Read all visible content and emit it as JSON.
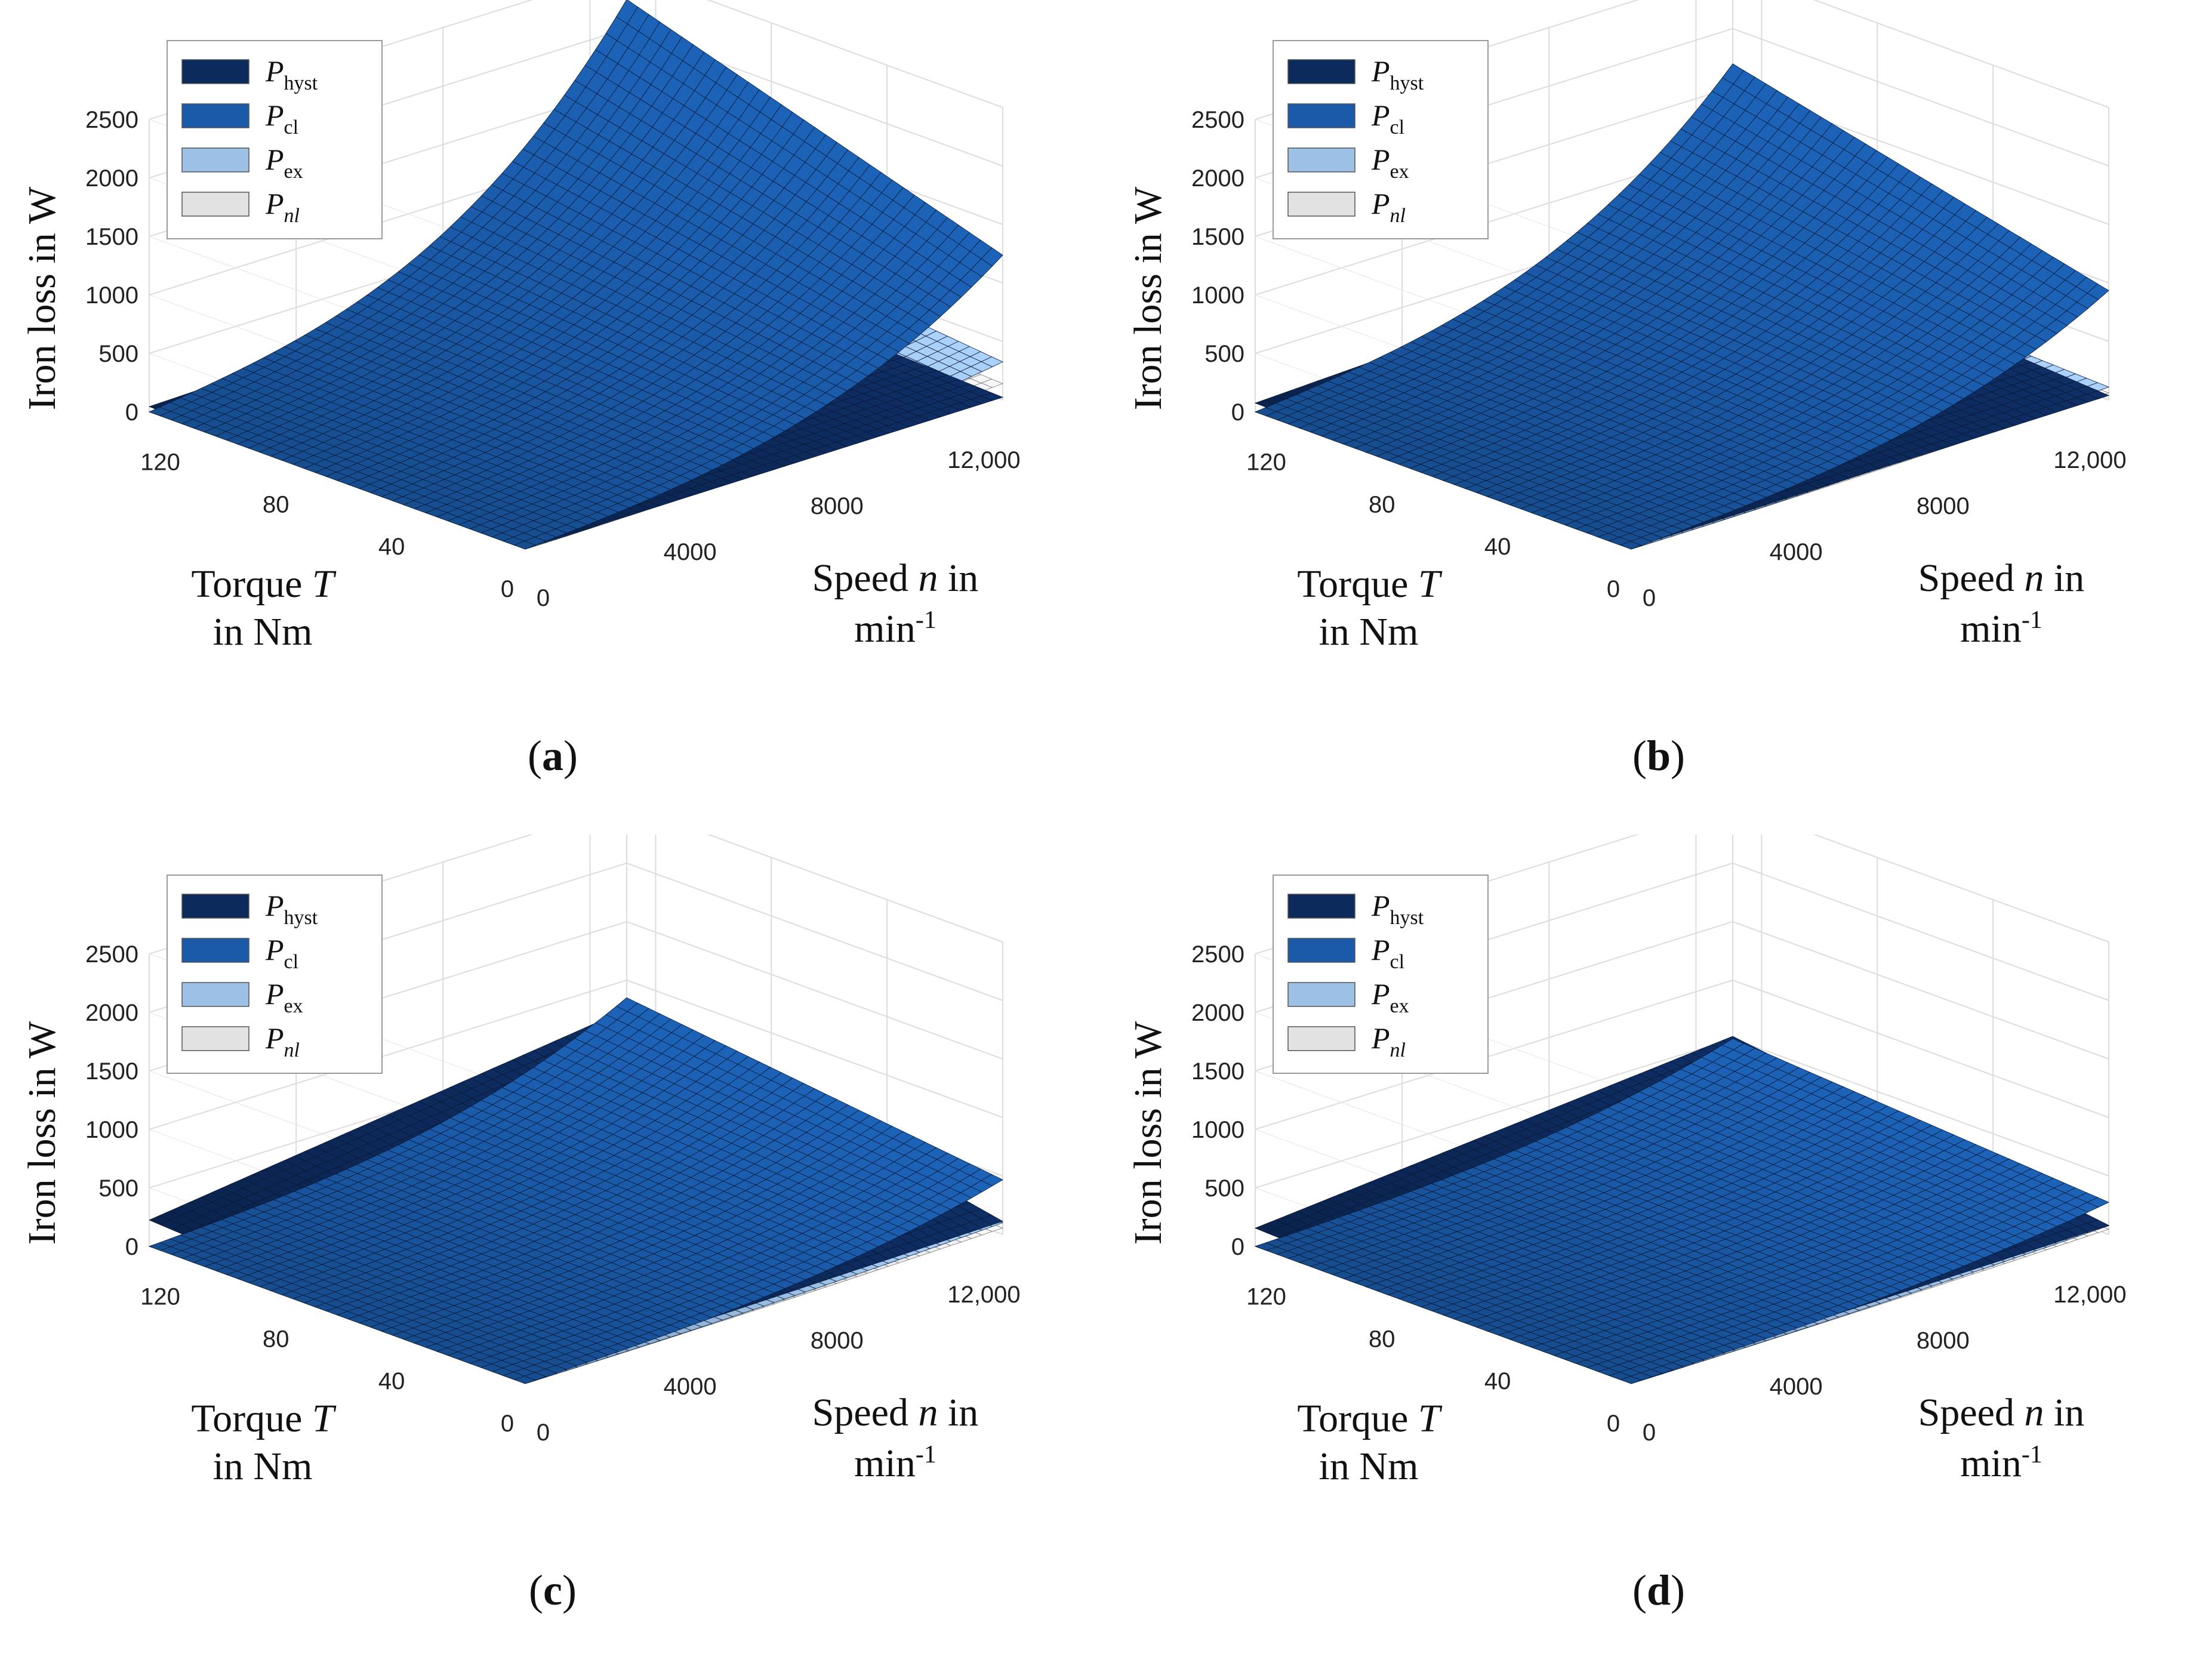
{
  "chart_data": [
    {
      "type": "surface",
      "panel_label": "(a)",
      "panel_letter": "a",
      "zlabel": "Iron loss in W",
      "xlabel_line1": "Torque T",
      "xlabel_line1_plain": "Torque ",
      "xlabel_line1_var": "T",
      "xlabel_line2": "in Nm",
      "ylabel_line1_plain": "Speed ",
      "ylabel_line1_var": "n",
      "ylabel_line1_tail": " in",
      "ylabel_line2_base": "min",
      "ylabel_line2_sup": "-1",
      "torque_ticks": [
        "120",
        "80",
        "40",
        "0"
      ],
      "speed_ticks": [
        "0",
        "4000",
        "8000",
        "12,000"
      ],
      "z_ticks": [
        "0",
        "500",
        "1000",
        "1500",
        "2000",
        "2500"
      ],
      "torque_range": [
        0,
        130
      ],
      "speed_range": [
        0,
        13000
      ],
      "zlim": [
        0,
        2500
      ],
      "legend": [
        {
          "main": "P",
          "sub": "hyst",
          "italic_sub": false,
          "color": "#0d2a5c"
        },
        {
          "main": "P",
          "sub": "cl",
          "italic_sub": false,
          "color": "#1a5aa8"
        },
        {
          "main": "P",
          "sub": "ex",
          "italic_sub": false,
          "color": "#9cc0e6"
        },
        {
          "main": "P",
          "sub": "nl",
          "italic_sub": true,
          "color": "#e2e2e2"
        }
      ],
      "series": [
        {
          "name": "P_hyst",
          "max_value": 150
        },
        {
          "name": "P_cl",
          "max_value": 2250
        },
        {
          "name": "P_ex",
          "max_value": 650
        },
        {
          "name": "P_nl",
          "max_value": 280
        }
      ]
    },
    {
      "type": "surface",
      "panel_label": "(b)",
      "panel_letter": "b",
      "zlabel": "Iron loss in W",
      "xlabel_line1_plain": "Torque ",
      "xlabel_line1_var": "T",
      "xlabel_line2": "in Nm",
      "ylabel_line1_plain": "Speed ",
      "ylabel_line1_var": "n",
      "ylabel_line1_tail": " in",
      "ylabel_line2_base": "min",
      "ylabel_line2_sup": "-1",
      "torque_ticks": [
        "120",
        "80",
        "40",
        "0"
      ],
      "speed_ticks": [
        "0",
        "4000",
        "8000",
        "12,000"
      ],
      "z_ticks": [
        "0",
        "500",
        "1000",
        "1500",
        "2000",
        "2500"
      ],
      "torque_range": [
        0,
        130
      ],
      "speed_range": [
        0,
        13000
      ],
      "zlim": [
        0,
        2500
      ],
      "legend": [
        {
          "main": "P",
          "sub": "hyst",
          "italic_sub": false,
          "color": "#0d2a5c"
        },
        {
          "main": "P",
          "sub": "cl",
          "italic_sub": false,
          "color": "#1a5aa8"
        },
        {
          "main": "P",
          "sub": "ex",
          "italic_sub": false,
          "color": "#9cc0e6"
        },
        {
          "main": "P",
          "sub": "nl",
          "italic_sub": true,
          "color": "#e2e2e2"
        }
      ],
      "series": [
        {
          "name": "P_hyst",
          "max_value": 250
        },
        {
          "name": "P_cl",
          "max_value": 1700
        },
        {
          "name": "P_ex",
          "max_value": 220
        },
        {
          "name": "P_nl",
          "max_value": 120
        }
      ]
    },
    {
      "type": "surface",
      "panel_label": "(c)",
      "panel_letter": "c",
      "zlabel": "Iron loss in W",
      "xlabel_line1_plain": "Torque ",
      "xlabel_line1_var": "T",
      "xlabel_line2": "in Nm",
      "ylabel_line1_plain": "Speed ",
      "ylabel_line1_var": "n",
      "ylabel_line1_tail": " in",
      "ylabel_line2_base": "min",
      "ylabel_line2_sup": "-1",
      "torque_ticks": [
        "120",
        "80",
        "40",
        "0"
      ],
      "speed_ticks": [
        "0",
        "4000",
        "8000",
        "12,000"
      ],
      "z_ticks": [
        "0",
        "500",
        "1000",
        "1500",
        "2000",
        "2500"
      ],
      "torque_range": [
        0,
        130
      ],
      "speed_range": [
        0,
        13000
      ],
      "zlim": [
        0,
        2500
      ],
      "legend": [
        {
          "main": "P",
          "sub": "hyst",
          "italic_sub": false,
          "color": "#0d2a5c"
        },
        {
          "main": "P",
          "sub": "cl",
          "italic_sub": false,
          "color": "#1a5aa8"
        },
        {
          "main": "P",
          "sub": "ex",
          "italic_sub": false,
          "color": "#9cc0e6"
        },
        {
          "main": "P",
          "sub": "nl",
          "italic_sub": true,
          "color": "#e2e2e2"
        }
      ],
      "series": [
        {
          "name": "P_hyst",
          "max_value": 750
        },
        {
          "name": "P_cl",
          "max_value": 850
        },
        {
          "name": "P_ex",
          "max_value": 200
        },
        {
          "name": "P_nl",
          "max_value": 110
        }
      ]
    },
    {
      "type": "surface",
      "panel_label": "(d)",
      "panel_letter": "d",
      "zlabel": "Iron loss in W",
      "xlabel_line1_plain": "Torque ",
      "xlabel_line1_var": "T",
      "xlabel_line2": "in Nm",
      "ylabel_line1_plain": "Speed ",
      "ylabel_line1_var": "n",
      "ylabel_line1_tail": " in",
      "ylabel_line2_base": "min",
      "ylabel_line2_sup": "-1",
      "torque_ticks": [
        "120",
        "80",
        "40",
        "0"
      ],
      "speed_ticks": [
        "0",
        "4000",
        "8000",
        "12,000"
      ],
      "z_ticks": [
        "0",
        "500",
        "1000",
        "1500",
        "2000",
        "2500"
      ],
      "torque_range": [
        0,
        130
      ],
      "speed_range": [
        0,
        13000
      ],
      "zlim": [
        0,
        2500
      ],
      "legend": [
        {
          "main": "P",
          "sub": "hyst",
          "italic_sub": false,
          "color": "#0d2a5c"
        },
        {
          "main": "P",
          "sub": "cl",
          "italic_sub": false,
          "color": "#1a5aa8"
        },
        {
          "main": "P",
          "sub": "ex",
          "italic_sub": false,
          "color": "#9cc0e6"
        },
        {
          "main": "P",
          "sub": "nl",
          "italic_sub": true,
          "color": "#e2e2e2"
        }
      ],
      "series": [
        {
          "name": "P_hyst",
          "max_value": 520
        },
        {
          "name": "P_cl",
          "max_value": 500
        },
        {
          "name": "P_ex",
          "max_value": 150
        },
        {
          "name": "P_nl",
          "max_value": 90
        }
      ]
    }
  ]
}
